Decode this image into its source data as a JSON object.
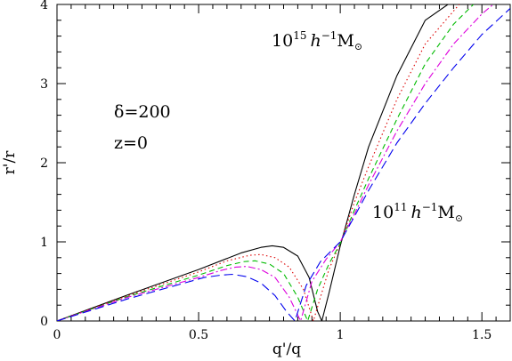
{
  "chart_data": {
    "type": "line",
    "xlabel": "q'/q",
    "ylabel": "r'/r",
    "xlim": [
      0,
      1.6
    ],
    "ylim": [
      0,
      4
    ],
    "xticks": [
      {
        "value": 0,
        "label": "0"
      },
      {
        "value": 0.5,
        "label": "0.5"
      },
      {
        "value": 1,
        "label": "1"
      },
      {
        "value": 1.5,
        "label": "1.5"
      }
    ],
    "yticks": [
      {
        "value": 0,
        "label": "0"
      },
      {
        "value": 1,
        "label": "1"
      },
      {
        "value": 2,
        "label": "2"
      },
      {
        "value": 3,
        "label": "3"
      },
      {
        "value": 4,
        "label": "4"
      }
    ],
    "grid": false,
    "legend": "none",
    "annotations": {
      "delta": "δ=200",
      "redshift": "z=0",
      "high_mass_prefix": "10",
      "high_mass_exp": "15",
      "low_mass_prefix": "10",
      "low_mass_exp": "11",
      "mass_unit_h": "h",
      "mass_unit_exp": "−1",
      "mass_unit_M": "M",
      "sun_symbol": "⊙"
    },
    "series": [
      {
        "color": "#000000",
        "dash": "solid",
        "x": [
          0,
          0.25,
          0.5,
          0.65,
          0.72,
          0.76,
          0.8,
          0.85,
          0.89,
          0.92,
          0.935,
          0.96,
          1.0,
          1.05,
          1.1,
          1.2,
          1.3,
          1.38
        ],
        "y": [
          0,
          0.33,
          0.65,
          0.86,
          0.93,
          0.95,
          0.93,
          0.82,
          0.55,
          0.12,
          0.0,
          0.35,
          0.95,
          1.6,
          2.2,
          3.1,
          3.8,
          4.0
        ]
      },
      {
        "color": "#dd0000",
        "dash": "dotted",
        "x": [
          0,
          0.25,
          0.5,
          0.6,
          0.68,
          0.72,
          0.77,
          0.82,
          0.87,
          0.905,
          0.93,
          0.96,
          1.0,
          1.05,
          1.1,
          1.2,
          1.3,
          1.42
        ],
        "y": [
          0,
          0.32,
          0.62,
          0.76,
          0.83,
          0.84,
          0.8,
          0.68,
          0.4,
          0.0,
          0.3,
          0.65,
          0.98,
          1.5,
          1.95,
          2.8,
          3.5,
          4.0
        ]
      },
      {
        "color": "#00bb00",
        "dash": "dashed",
        "x": [
          0,
          0.25,
          0.5,
          0.6,
          0.66,
          0.7,
          0.75,
          0.8,
          0.85,
          0.885,
          0.92,
          0.96,
          1.0,
          1.05,
          1.1,
          1.2,
          1.3,
          1.4,
          1.47
        ],
        "y": [
          0,
          0.31,
          0.58,
          0.7,
          0.75,
          0.76,
          0.72,
          0.6,
          0.3,
          0.0,
          0.4,
          0.72,
          0.98,
          1.4,
          1.8,
          2.55,
          3.25,
          3.75,
          4.0
        ]
      },
      {
        "color": "#dd00dd",
        "dash": "dashdot",
        "x": [
          0,
          0.25,
          0.5,
          0.58,
          0.63,
          0.67,
          0.72,
          0.77,
          0.82,
          0.86,
          0.9,
          0.95,
          1.0,
          1.05,
          1.1,
          1.2,
          1.3,
          1.4,
          1.5,
          1.54
        ],
        "y": [
          0,
          0.3,
          0.55,
          0.64,
          0.68,
          0.69,
          0.65,
          0.55,
          0.3,
          0.0,
          0.5,
          0.78,
          1.0,
          1.35,
          1.72,
          2.4,
          3.0,
          3.5,
          3.88,
          4.0
        ]
      },
      {
        "color": "#0000ee",
        "dash": "longdash",
        "x": [
          0,
          0.25,
          0.45,
          0.52,
          0.58,
          0.62,
          0.67,
          0.72,
          0.77,
          0.81,
          0.84,
          0.88,
          0.93,
          1.0,
          1.05,
          1.1,
          1.2,
          1.3,
          1.4,
          1.5,
          1.6
        ],
        "y": [
          0,
          0.28,
          0.48,
          0.55,
          0.58,
          0.59,
          0.56,
          0.48,
          0.32,
          0.12,
          0.0,
          0.45,
          0.75,
          1.0,
          1.32,
          1.65,
          2.25,
          2.75,
          3.2,
          3.62,
          3.95
        ]
      }
    ]
  }
}
